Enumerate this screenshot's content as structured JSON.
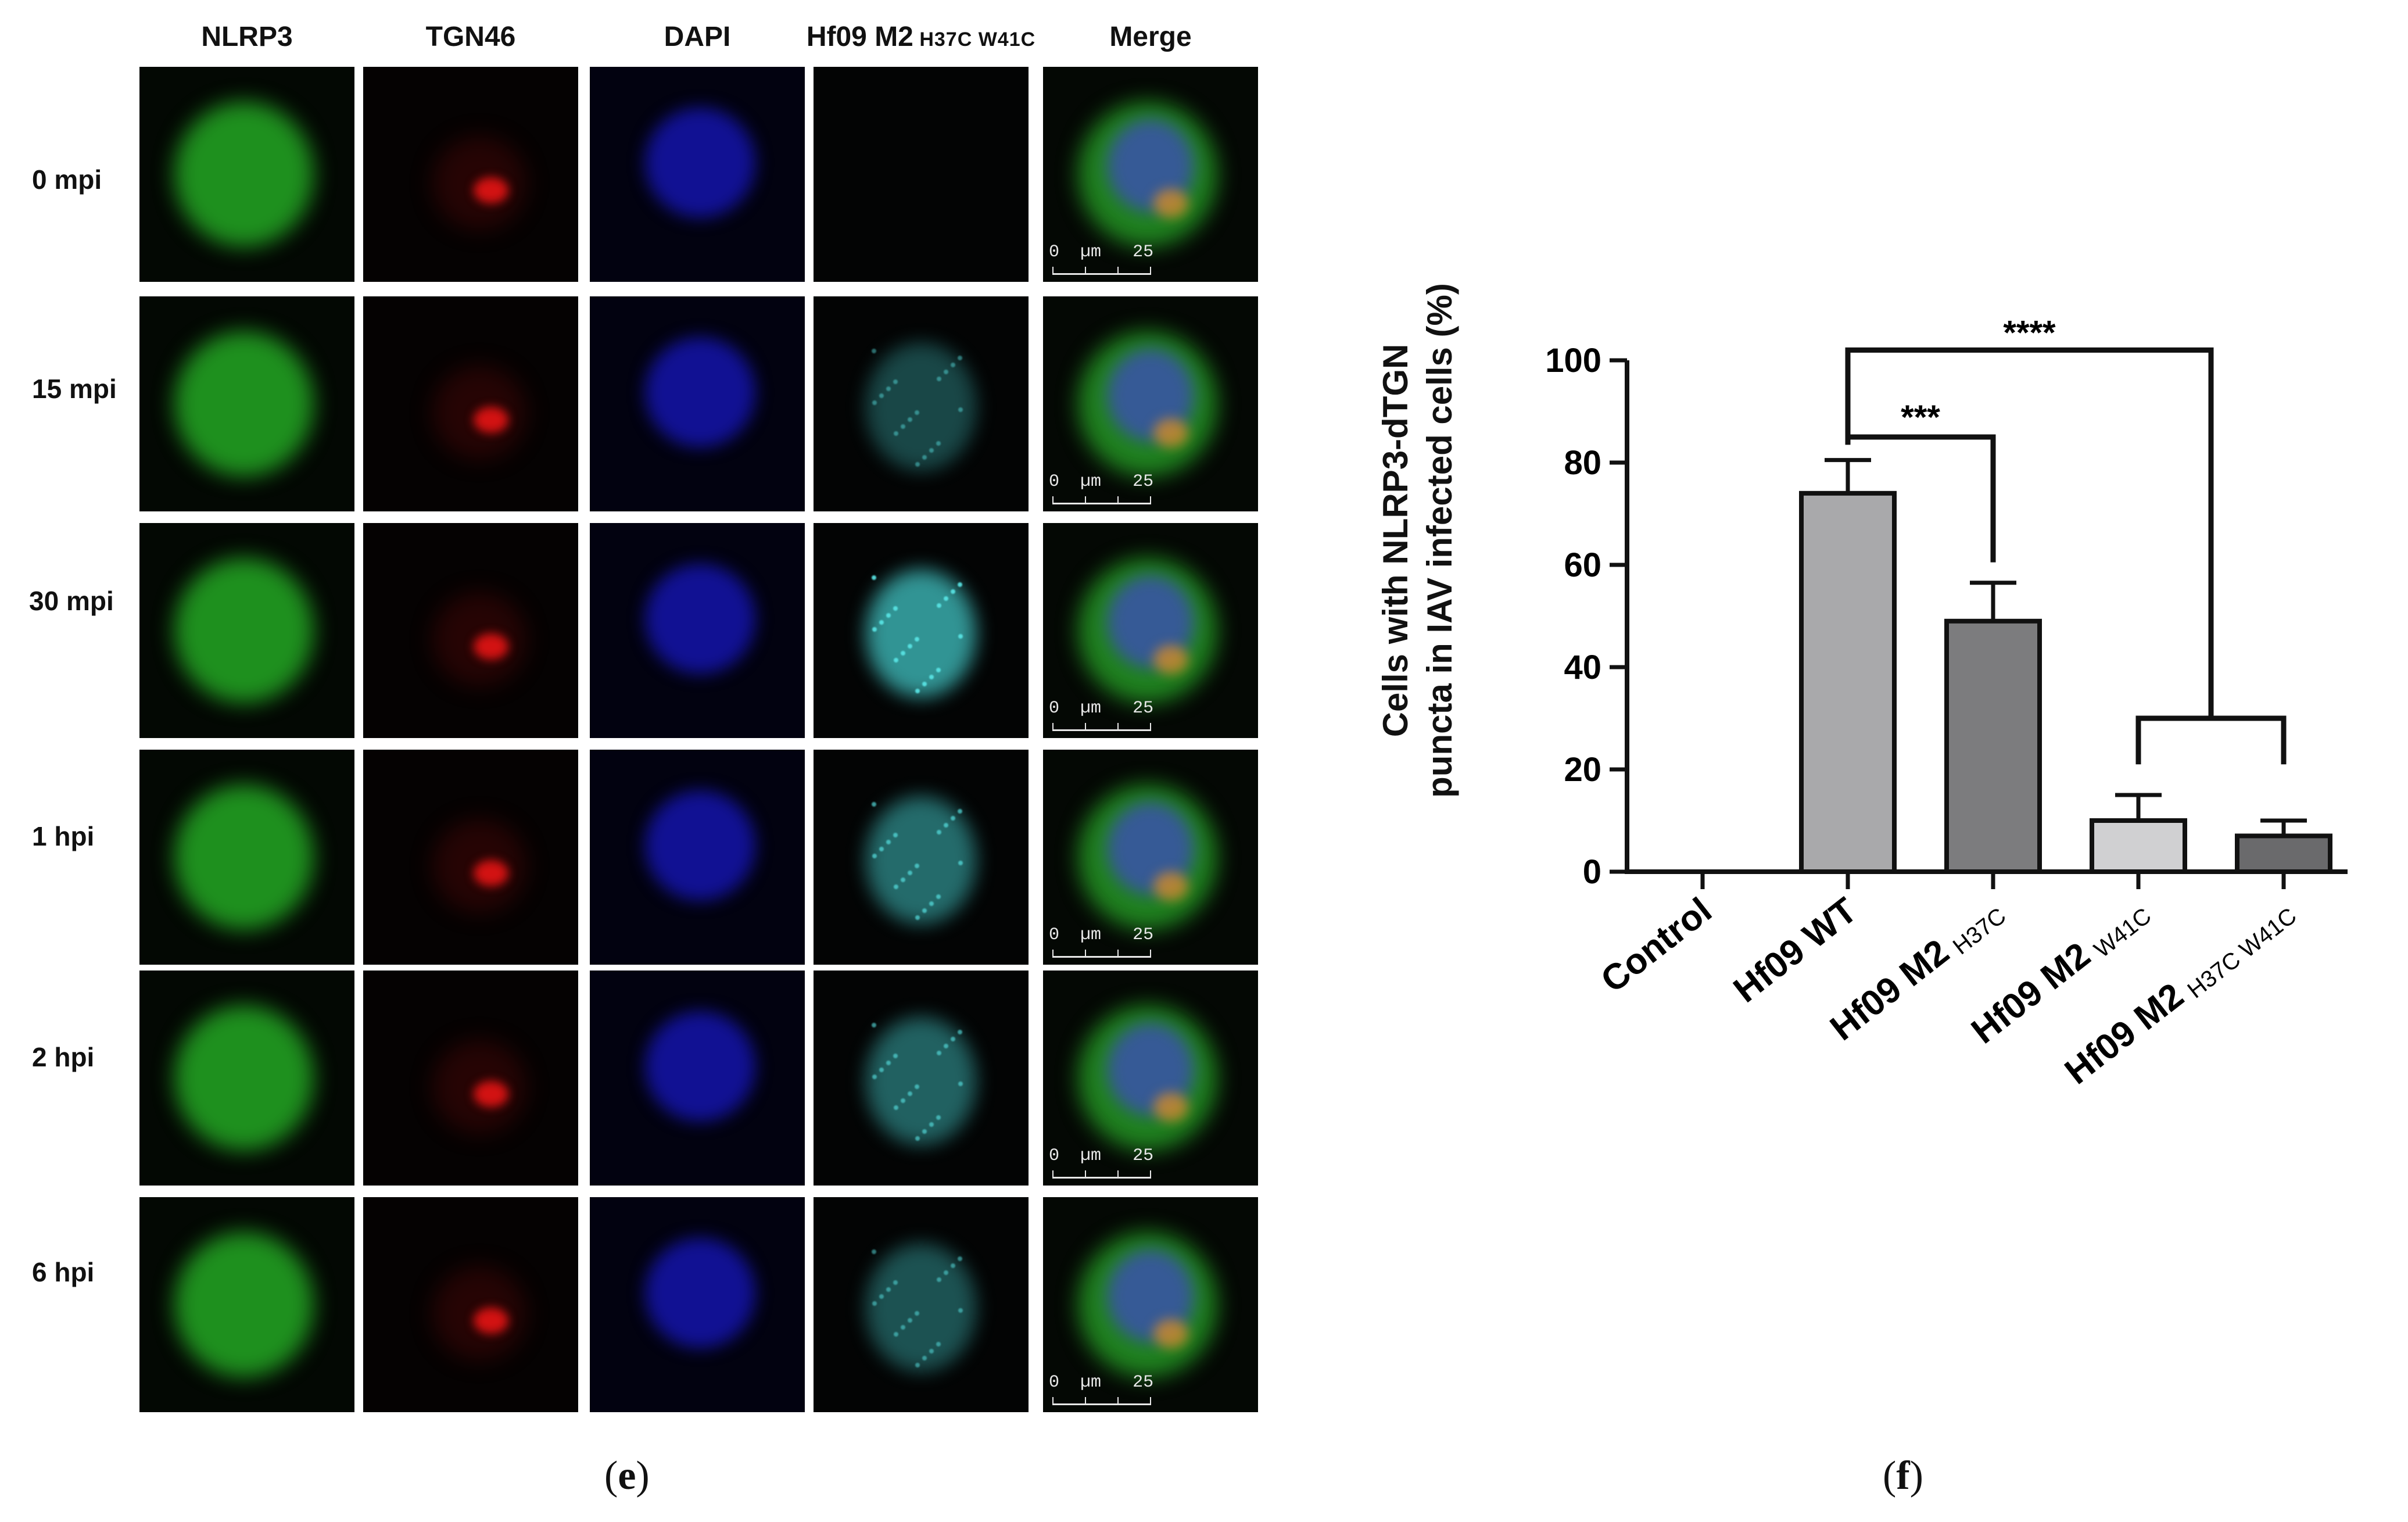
{
  "panel_e": {
    "columns": [
      {
        "label": "NLRP3",
        "sub": ""
      },
      {
        "label": "TGN46",
        "sub": ""
      },
      {
        "label": "DAPI",
        "sub": ""
      },
      {
        "label": "Hf09 M2",
        "sub": "H37C W41C"
      },
      {
        "label": "Merge",
        "sub": ""
      }
    ],
    "rows": [
      "0 mpi",
      "15 mpi",
      "30 mpi",
      "1 hpi",
      "2 hpi",
      "6 hpi"
    ],
    "scalebar": {
      "start": "0",
      "unit": "µm",
      "end": "25"
    },
    "caption": "(e)"
  },
  "panel_f": {
    "caption": "(f)",
    "chart_data": {
      "type": "bar",
      "ylabel": "Cells with NLRP3-dTGN puncta in IAV infected cells (%)",
      "ylabel_lines": [
        "Cells with NLRP3-dTGN",
        "puncta in IAV infected cells (%)"
      ],
      "ylim": [
        0,
        100
      ],
      "yticks": [
        "0",
        "20",
        "40",
        "60",
        "80",
        "100"
      ],
      "categories": [
        {
          "main": "Control",
          "sub": ""
        },
        {
          "main": "Hf09 WT",
          "sub": ""
        },
        {
          "main": "Hf09 M2",
          "sub": "H37C"
        },
        {
          "main": "Hf09 M2",
          "sub": "W41C"
        },
        {
          "main": "Hf09 M2",
          "sub": "H37C W41C"
        }
      ],
      "values": [
        0,
        74,
        49,
        10,
        7
      ],
      "errors": [
        0,
        6.5,
        7.5,
        5,
        3
      ],
      "bar_colors": [
        "#ffffff",
        "#a9a9ab",
        "#7c7c7e",
        "#d0d0d2",
        "#6a6a6c"
      ],
      "significance": [
        {
          "label": "***",
          "from": 1,
          "to": [
            2
          ]
        },
        {
          "label": "****",
          "from": 1,
          "to": [
            3,
            4
          ]
        }
      ]
    }
  }
}
